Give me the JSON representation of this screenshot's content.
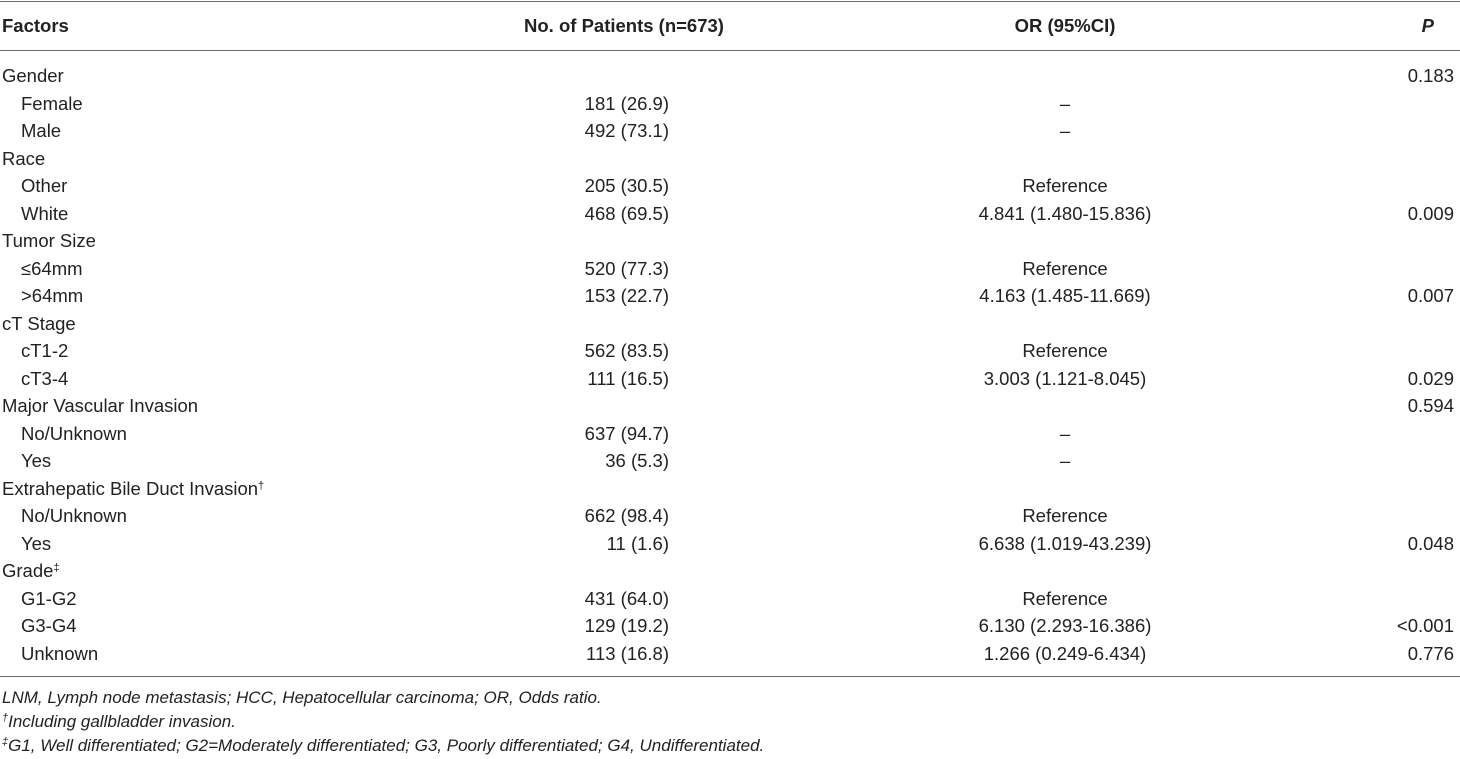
{
  "table": {
    "headers": {
      "factors": "Factors",
      "patients": "No. of Patients (n=673)",
      "or": "OR (95%CI)",
      "p": "P"
    },
    "rows": [
      {
        "type": "group",
        "factor": "Gender",
        "patients": "",
        "or": "",
        "p": "0.183"
      },
      {
        "type": "sub",
        "factor": "Female",
        "patients": "181 (26.9)",
        "or": "–",
        "p": ""
      },
      {
        "type": "sub",
        "factor": "Male",
        "patients": "492 (73.1)",
        "or": "–",
        "p": ""
      },
      {
        "type": "group",
        "factor": "Race",
        "patients": "",
        "or": "",
        "p": ""
      },
      {
        "type": "sub",
        "factor": "Other",
        "patients": "205 (30.5)",
        "or": "Reference",
        "p": ""
      },
      {
        "type": "sub",
        "factor": "White",
        "patients": "468 (69.5)",
        "or": "4.841 (1.480-15.836)",
        "p": "0.009"
      },
      {
        "type": "group",
        "factor": "Tumor Size",
        "patients": "",
        "or": "",
        "p": ""
      },
      {
        "type": "sub",
        "factor": "≤64mm",
        "patients": "520 (77.3)",
        "or": "Reference",
        "p": ""
      },
      {
        "type": "sub",
        "factor": ">64mm",
        "patients": "153 (22.7)",
        "or": "4.163 (1.485-11.669)",
        "p": "0.007"
      },
      {
        "type": "group",
        "factor": "cT Stage",
        "patients": "",
        "or": "",
        "p": ""
      },
      {
        "type": "sub",
        "factor": "cT1-2",
        "patients": "562 (83.5)",
        "or": "Reference",
        "p": ""
      },
      {
        "type": "sub",
        "factor": "cT3-4",
        "patients": "111 (16.5)",
        "or": "3.003 (1.121-8.045)",
        "p": "0.029"
      },
      {
        "type": "group",
        "factor": "Major Vascular Invasion",
        "patients": "",
        "or": "",
        "p": "0.594"
      },
      {
        "type": "sub",
        "factor": "No/Unknown",
        "patients": "637 (94.7)",
        "or": "–",
        "p": ""
      },
      {
        "type": "sub",
        "factor": "Yes",
        "patients": "36 (5.3)",
        "or": "–",
        "p": ""
      },
      {
        "type": "group",
        "factor": "Extrahepatic Bile Duct Invasion",
        "sup": "†",
        "patients": "",
        "or": "",
        "p": ""
      },
      {
        "type": "sub",
        "factor": "No/Unknown",
        "patients": "662 (98.4)",
        "or": "Reference",
        "p": ""
      },
      {
        "type": "sub",
        "factor": "Yes",
        "patients": "11 (1.6)",
        "or": "6.638 (1.019-43.239)",
        "p": "0.048"
      },
      {
        "type": "group",
        "factor": "Grade",
        "sup": "‡",
        "patients": "",
        "or": "",
        "p": ""
      },
      {
        "type": "sub",
        "factor": "G1-G2",
        "patients": "431 (64.0)",
        "or": "Reference",
        "p": ""
      },
      {
        "type": "sub",
        "factor": "G3-G4",
        "patients": "129 (19.2)",
        "or": "6.130 (2.293-16.386)",
        "p": "<0.001"
      },
      {
        "type": "sub",
        "factor": "Unknown",
        "patients": "113 (16.8)",
        "or": "1.266 (0.249-6.434)",
        "p": "0.776"
      }
    ]
  },
  "footnotes": {
    "abbreviations": "LNM, Lymph node metastasis; HCC, Hepatocellular carcinoma; OR, Odds ratio.",
    "dagger_mark": "†",
    "dagger_text": "Including gallbladder invasion.",
    "ddagger_mark": "‡",
    "ddagger_text": "G1, Well differentiated; G2=Moderately differentiated; G3, Poorly differentiated; G4, Undifferentiated."
  }
}
